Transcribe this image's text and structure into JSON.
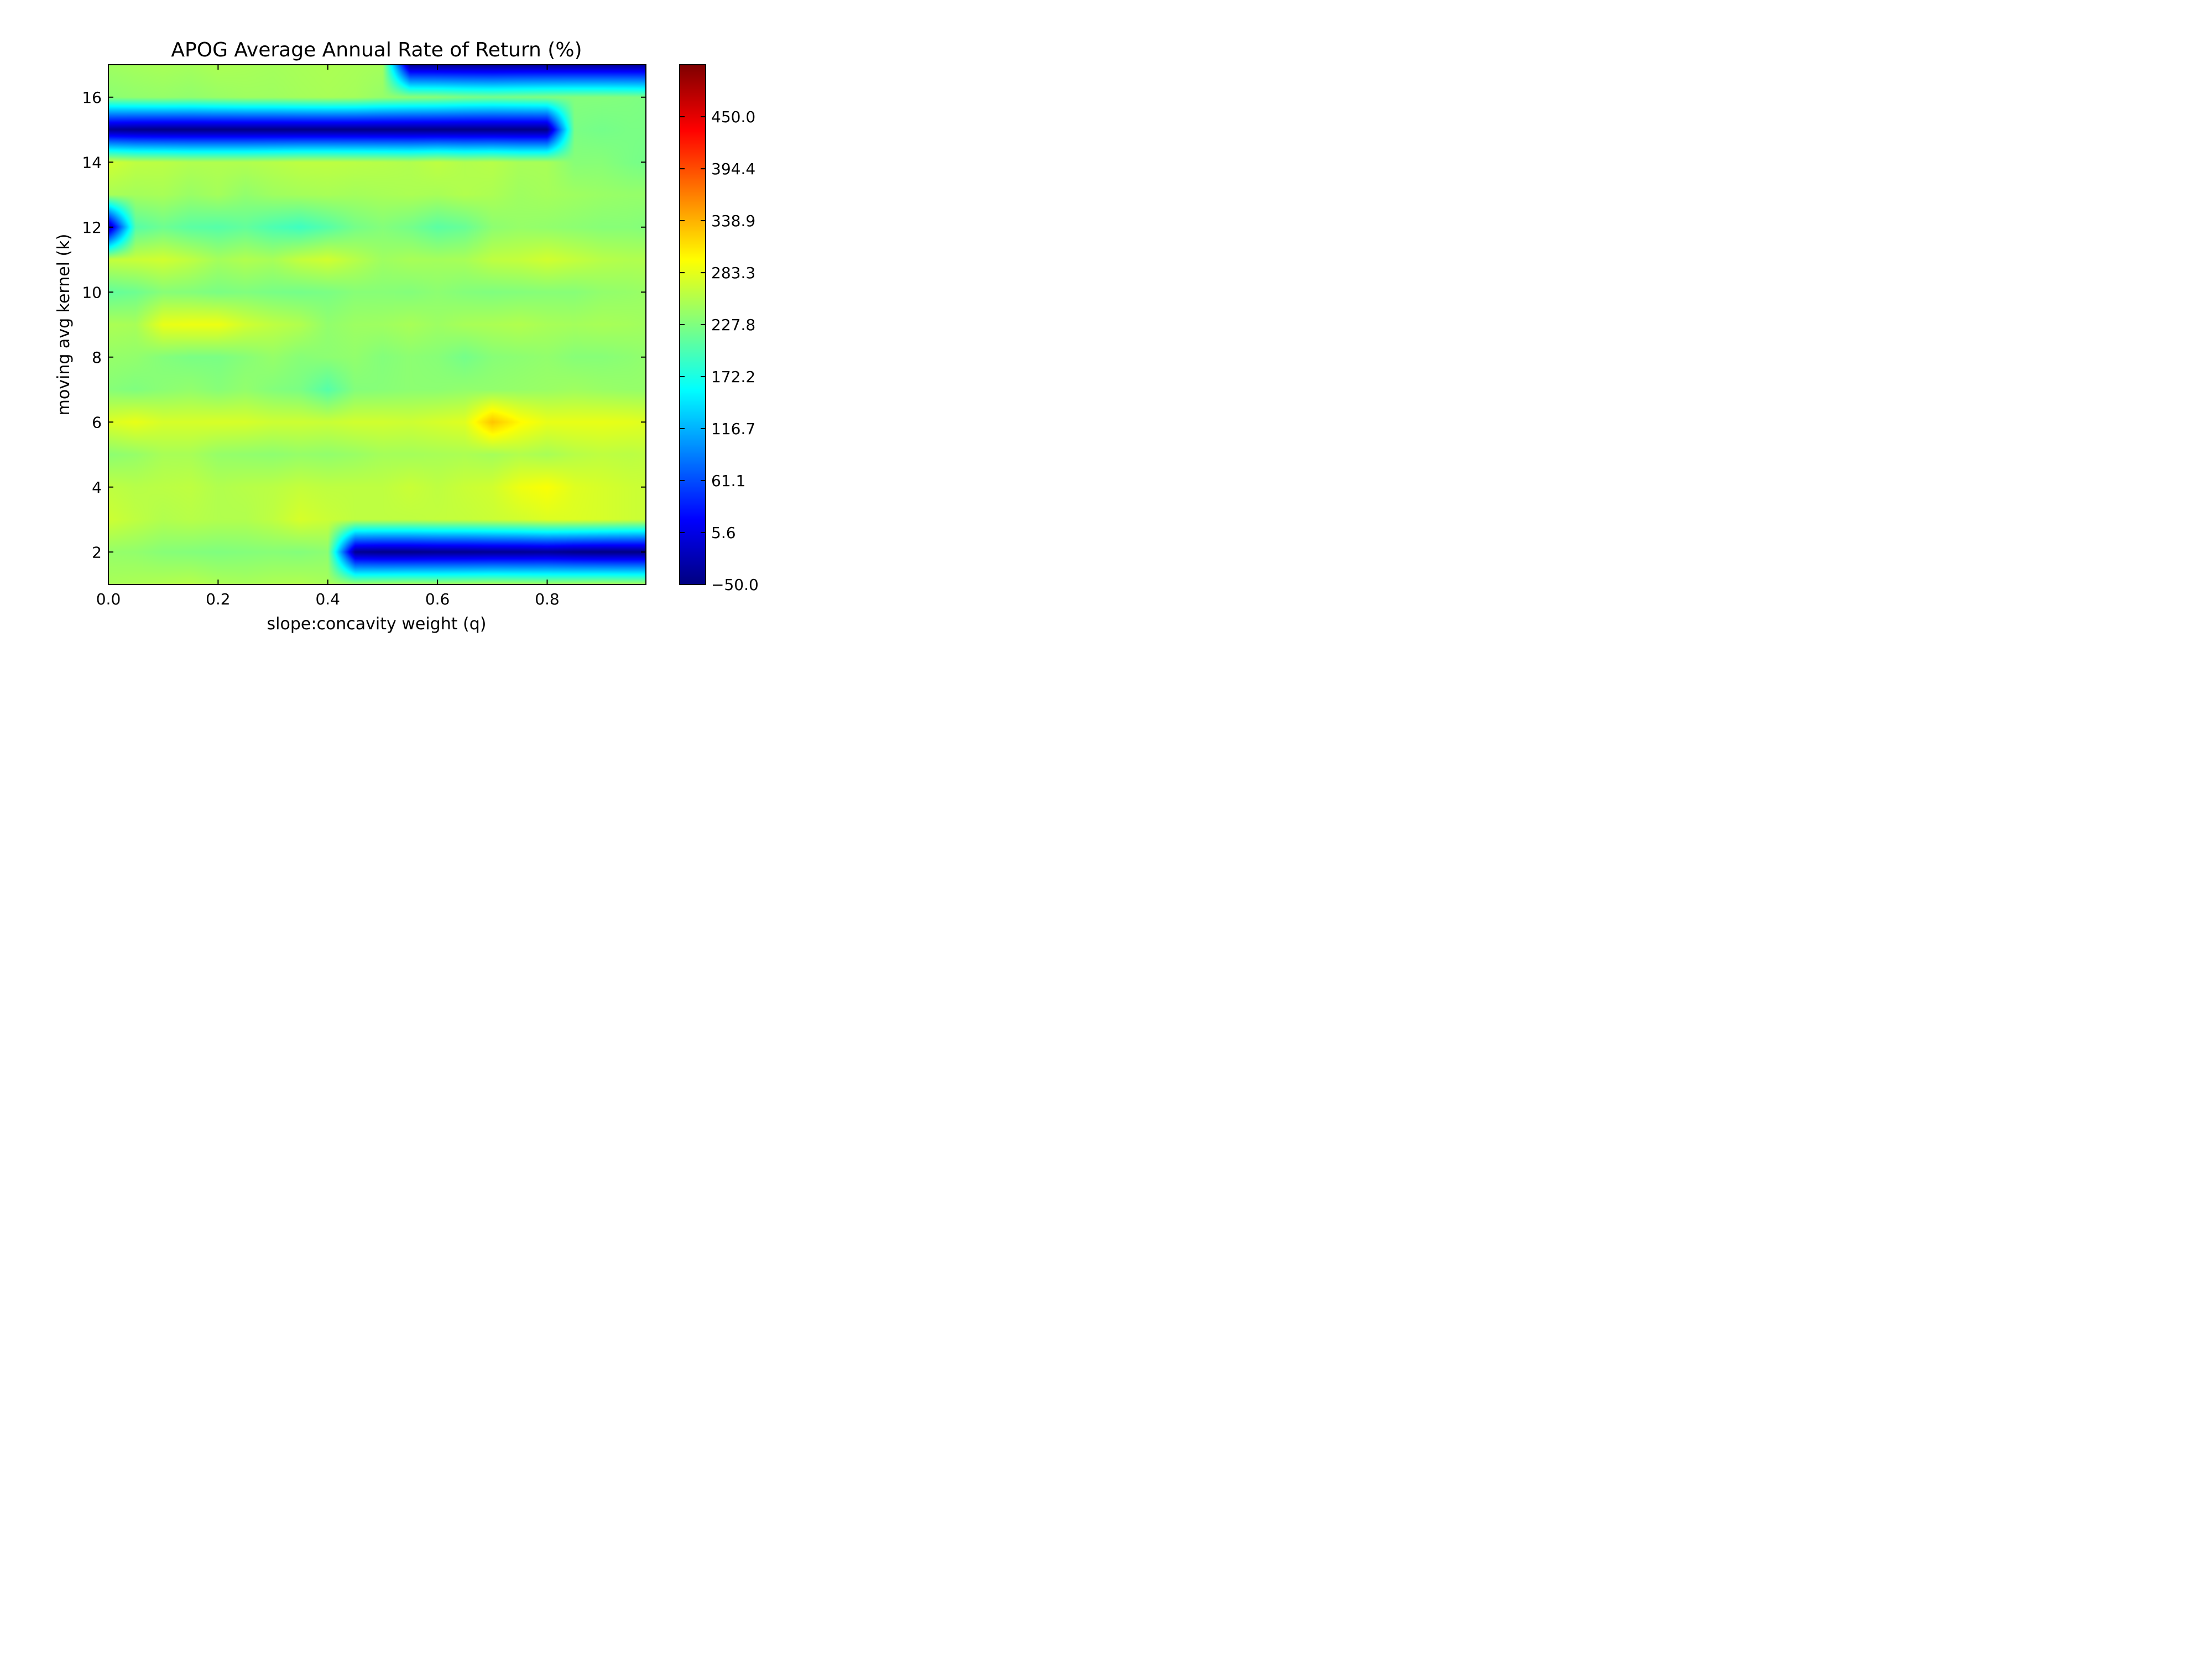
{
  "chart_data": {
    "type": "heatmap",
    "title": "APOG Average Annual Rate of Return (%)",
    "xlabel": "slope:concavity weight (q)",
    "ylabel": "moving avg kernel (k)",
    "xlim": [
      0.0,
      0.98
    ],
    "ylim": [
      1,
      17
    ],
    "x_ticks": [
      0.0,
      0.2,
      0.4,
      0.6,
      0.8
    ],
    "x_tick_labels": [
      "0.0",
      "0.2",
      "0.4",
      "0.6",
      "0.8"
    ],
    "y_ticks": [
      2,
      4,
      6,
      8,
      10,
      12,
      14,
      16
    ],
    "y_tick_labels": [
      "2",
      "4",
      "6",
      "8",
      "10",
      "12",
      "14",
      "16"
    ],
    "colormap": "jet",
    "colorbar": {
      "range": [
        -50.0,
        505.6
      ],
      "ticks": [
        -50.0,
        5.6,
        61.1,
        116.7,
        172.2,
        227.8,
        283.3,
        338.9,
        394.4,
        450.0
      ],
      "tick_labels": [
        "−50.0",
        "5.6",
        "61.1",
        "116.7",
        "172.2",
        "227.8",
        "283.3",
        "338.9",
        "394.4",
        "450.0"
      ]
    },
    "grid": false,
    "x": [
      0.0,
      0.05,
      0.1,
      0.15,
      0.2,
      0.25,
      0.3,
      0.35,
      0.4,
      0.45,
      0.5,
      0.55,
      0.6,
      0.65,
      0.7,
      0.75,
      0.8,
      0.85,
      0.9,
      0.95,
      0.98
    ],
    "y": [
      1,
      2,
      3,
      4,
      5,
      6,
      7,
      8,
      9,
      10,
      11,
      12,
      13,
      14,
      15,
      16,
      17
    ],
    "z": [
      [
        250,
        252,
        255,
        258,
        252,
        250,
        253,
        255,
        250,
        245,
        248,
        250,
        248,
        250,
        252,
        250,
        248,
        250,
        252,
        250,
        250
      ],
      [
        240,
        238,
        232,
        230,
        228,
        230,
        232,
        230,
        235,
        -40,
        -45,
        -45,
        -42,
        -42,
        -40,
        -40,
        -38,
        -45,
        -48,
        -48,
        -48
      ],
      [
        270,
        262,
        255,
        258,
        255,
        255,
        262,
        275,
        268,
        262,
        262,
        262,
        264,
        265,
        268,
        272,
        278,
        278,
        275,
        270,
        268
      ],
      [
        262,
        258,
        260,
        262,
        255,
        258,
        260,
        265,
        262,
        262,
        262,
        268,
        262,
        268,
        272,
        288,
        295,
        280,
        275,
        270,
        268
      ],
      [
        235,
        240,
        250,
        250,
        240,
        238,
        236,
        240,
        238,
        242,
        248,
        248,
        250,
        252,
        248,
        255,
        250,
        258,
        262,
        260,
        262
      ],
      [
        278,
        285,
        275,
        275,
        276,
        275,
        270,
        270,
        268,
        272,
        272,
        270,
        275,
        280,
        330,
        300,
        285,
        285,
        285,
        283,
        280
      ],
      [
        232,
        228,
        234,
        238,
        232,
        238,
        230,
        225,
        205,
        230,
        232,
        235,
        235,
        238,
        238,
        240,
        242,
        245,
        242,
        240,
        240
      ],
      [
        240,
        238,
        230,
        225,
        225,
        232,
        240,
        232,
        235,
        238,
        230,
        235,
        232,
        222,
        232,
        235,
        238,
        232,
        232,
        235,
        238
      ],
      [
        252,
        250,
        285,
        288,
        288,
        272,
        262,
        255,
        238,
        244,
        245,
        250,
        244,
        250,
        252,
        255,
        250,
        248,
        250,
        248,
        246
      ],
      [
        212,
        218,
        232,
        230,
        225,
        228,
        224,
        222,
        225,
        232,
        232,
        230,
        235,
        230,
        228,
        230,
        232,
        232,
        238,
        240,
        242
      ],
      [
        265,
        268,
        272,
        262,
        248,
        255,
        250,
        265,
        272,
        258,
        245,
        250,
        248,
        250,
        262,
        265,
        272,
        265,
        258,
        255,
        255
      ],
      [
        -30,
        205,
        218,
        208,
        205,
        212,
        200,
        192,
        205,
        222,
        230,
        222,
        208,
        215,
        235,
        240,
        238,
        235,
        232,
        232,
        230
      ],
      [
        250,
        248,
        250,
        242,
        248,
        238,
        245,
        248,
        250,
        248,
        250,
        252,
        250,
        255,
        252,
        245,
        248,
        245,
        242,
        240,
        240
      ],
      [
        272,
        262,
        260,
        255,
        255,
        255,
        258,
        262,
        262,
        260,
        258,
        255,
        262,
        255,
        258,
        250,
        250,
        232,
        232,
        225,
        222
      ],
      [
        -40,
        -44,
        -46,
        -46,
        -46,
        -46,
        -46,
        -46,
        -46,
        -46,
        -46,
        -46,
        -46,
        -46,
        -46,
        -46,
        -46,
        225,
        222,
        225,
        225
      ],
      [
        235,
        238,
        240,
        238,
        242,
        245,
        245,
        248,
        250,
        248,
        240,
        235,
        232,
        225,
        222,
        225,
        228,
        230,
        230,
        228,
        226
      ],
      [
        245,
        248,
        250,
        248,
        252,
        250,
        248,
        250,
        252,
        250,
        248,
        -40,
        -40,
        -40,
        -40,
        -38,
        -38,
        -38,
        -38,
        -38,
        -38
      ]
    ]
  }
}
